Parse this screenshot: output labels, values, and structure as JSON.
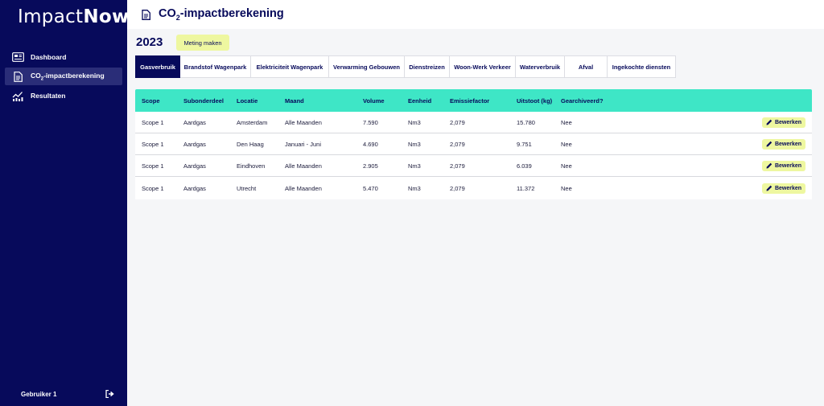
{
  "app": {
    "name_light": "Impact",
    "name_bold": "Now"
  },
  "sidebar": {
    "items": [
      {
        "label": "Dashboard",
        "icon": "dashboard-icon"
      },
      {
        "label": "-impactberekening",
        "prefix": "CO",
        "sub": "2",
        "icon": "document-icon",
        "active": true
      },
      {
        "label": "Resultaten",
        "icon": "chart-icon"
      }
    ],
    "user": "Gebruiker 1"
  },
  "header": {
    "title_prefix": "CO",
    "title_sub": "2",
    "title_suffix": "-impactberekening"
  },
  "main": {
    "year": "2023",
    "new_measure_label": "Meting maken",
    "tabs": [
      {
        "label": "Gasverbruik",
        "active": true
      },
      {
        "label": "Brandstof Wagenpark"
      },
      {
        "label": "Elektriciteit Wagenpark"
      },
      {
        "label": "Verwarming Gebouwen"
      },
      {
        "label": "Dienstreizen"
      },
      {
        "label": "Woon-Werk Verkeer"
      },
      {
        "label": "Waterverbruik"
      },
      {
        "label": "Afval"
      },
      {
        "label": "Ingekochte diensten"
      }
    ],
    "table": {
      "headers": [
        "Scope",
        "Subonderdeel",
        "Locatie",
        "Maand",
        "Volume",
        "Eenheid",
        "Emissiefactor",
        "Uitstoot (kg)",
        "Gearchiveerd?"
      ],
      "edit_label": "Bewerken",
      "rows": [
        [
          "Scope 1",
          "Aardgas",
          "Amsterdam",
          "Alle Maanden",
          "7.590",
          "Nm3",
          "2,079",
          "15.780",
          "Nee"
        ],
        [
          "Scope 1",
          "Aardgas",
          "Den Haag",
          "Januari - Juni",
          "4.690",
          "Nm3",
          "2,079",
          "9.751",
          "Nee"
        ],
        [
          "Scope 1",
          "Aardgas",
          "Eindhoven",
          "Alle Maanden",
          "2.905",
          "Nm3",
          "2,079",
          "6.039",
          "Nee"
        ],
        [
          "Scope 1",
          "Aardgas",
          "Utrecht",
          "Alle Maanden",
          "5.470",
          "Nm3",
          "2,079",
          "11.372",
          "Nee"
        ]
      ]
    }
  },
  "colors": {
    "sidebar_bg": "#070a5b",
    "accent_teal": "#3ee6c6",
    "button_yellow": "#eef7a0",
    "active_tab": "#070a5b"
  }
}
